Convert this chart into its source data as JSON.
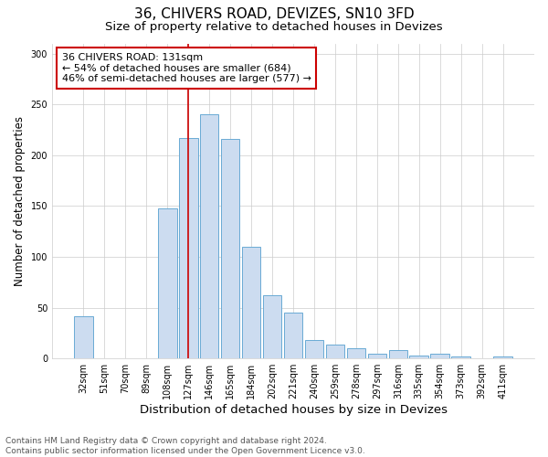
{
  "title1": "36, CHIVERS ROAD, DEVIZES, SN10 3FD",
  "title2": "Size of property relative to detached houses in Devizes",
  "xlabel": "Distribution of detached houses by size in Devizes",
  "ylabel": "Number of detached properties",
  "categories": [
    "32sqm",
    "51sqm",
    "70sqm",
    "89sqm",
    "108sqm",
    "127sqm",
    "146sqm",
    "165sqm",
    "184sqm",
    "202sqm",
    "221sqm",
    "240sqm",
    "259sqm",
    "278sqm",
    "297sqm",
    "316sqm",
    "335sqm",
    "354sqm",
    "373sqm",
    "392sqm",
    "411sqm"
  ],
  "values": [
    42,
    0,
    0,
    0,
    148,
    217,
    240,
    216,
    110,
    62,
    45,
    18,
    14,
    10,
    5,
    8,
    3,
    5,
    2,
    0,
    2
  ],
  "bar_color": "#ccdcf0",
  "bar_edge_color": "#6aaad4",
  "highlight_index": 5,
  "highlight_line_color": "#cc0000",
  "annotation_text": "36 CHIVERS ROAD: 131sqm\n← 54% of detached houses are smaller (684)\n46% of semi-detached houses are larger (577) →",
  "annotation_box_color": "#ffffff",
  "annotation_box_edge_color": "#cc0000",
  "ylim": [
    0,
    310
  ],
  "yticks": [
    0,
    50,
    100,
    150,
    200,
    250,
    300
  ],
  "footer_text": "Contains HM Land Registry data © Crown copyright and database right 2024.\nContains public sector information licensed under the Open Government Licence v3.0.",
  "title1_fontsize": 11,
  "title2_fontsize": 9.5,
  "xlabel_fontsize": 9.5,
  "ylabel_fontsize": 8.5,
  "tick_fontsize": 7,
  "footer_fontsize": 6.5,
  "annotation_fontsize": 8,
  "background_color": "#ffffff"
}
